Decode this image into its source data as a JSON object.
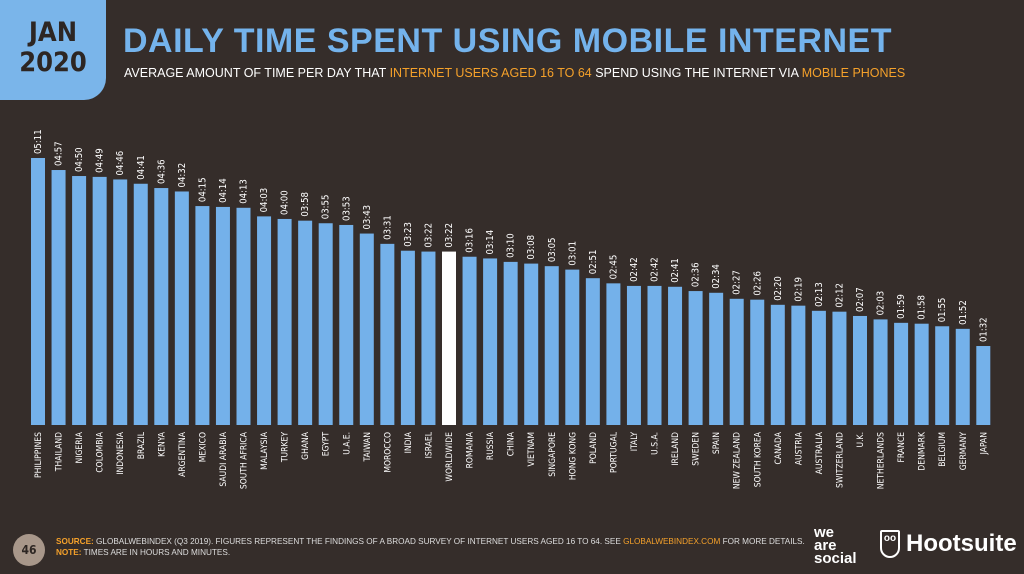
{
  "header": {
    "month": "JAN",
    "year": "2020",
    "title": "DAILY TIME SPENT USING MOBILE INTERNET",
    "subtitle_parts": [
      "AVERAGE AMOUNT OF TIME PER DAY THAT ",
      "INTERNET USERS AGED 16 TO 64",
      " SPEND USING THE INTERNET VIA ",
      "MOBILE PHONES"
    ]
  },
  "colors": {
    "bar": "#74b1ea",
    "highlight": "#ffffff",
    "accent": "#f5a12a",
    "background": "#352d2a"
  },
  "chart_data": {
    "type": "bar",
    "title": "DAILY TIME SPENT USING MOBILE INTERNET",
    "xlabel": "",
    "ylabel": "Hours:Minutes",
    "grid": false,
    "highlight": "WORLDWIDE",
    "categories": [
      "PHILIPPINES",
      "THAILAND",
      "NIGERIA",
      "COLOMBIA",
      "INDONESIA",
      "BRAZIL",
      "KENYA",
      "ARGENTINA",
      "MEXICO",
      "SAUDI ARABIA",
      "SOUTH AFRICA",
      "MALAYSIA",
      "TURKEY",
      "GHANA",
      "EGYPT",
      "U.A.E.",
      "TAIWAN",
      "MOROCCO",
      "INDIA",
      "ISRAEL",
      "WORLDWIDE",
      "ROMANIA",
      "RUSSIA",
      "CHINA",
      "VIETNAM",
      "SINGAPORE",
      "HONG KONG",
      "POLAND",
      "PORTUGAL",
      "ITALY",
      "U.S.A.",
      "IRELAND",
      "SWEDEN",
      "SPAIN",
      "NEW ZEALAND",
      "SOUTH KOREA",
      "CANADA",
      "AUSTRIA",
      "AUSTRALIA",
      "SWITZERLAND",
      "U.K.",
      "NETHERLANDS",
      "FRANCE",
      "DENMARK",
      "BELGIUM",
      "GERMANY",
      "JAPAN"
    ],
    "labels": [
      "05:11",
      "04:57",
      "04:50",
      "04:49",
      "04:46",
      "04:41",
      "04:36",
      "04:32",
      "04:15",
      "04:14",
      "04:13",
      "04:03",
      "04:00",
      "03:58",
      "03:55",
      "03:53",
      "03:43",
      "03:31",
      "03:23",
      "03:22",
      "03:22",
      "03:16",
      "03:14",
      "03:10",
      "03:08",
      "03:05",
      "03:01",
      "02:51",
      "02:45",
      "02:42",
      "02:42",
      "02:41",
      "02:36",
      "02:34",
      "02:27",
      "02:26",
      "02:20",
      "02:19",
      "02:13",
      "02:12",
      "02:07",
      "02:03",
      "01:59",
      "01:58",
      "01:55",
      "01:52",
      "01:32"
    ],
    "values_minutes": [
      311,
      297,
      290,
      289,
      286,
      281,
      276,
      272,
      255,
      254,
      253,
      243,
      240,
      238,
      235,
      233,
      223,
      211,
      203,
      202,
      202,
      196,
      194,
      190,
      188,
      185,
      181,
      171,
      165,
      162,
      162,
      161,
      156,
      154,
      147,
      146,
      140,
      139,
      133,
      132,
      127,
      123,
      119,
      118,
      115,
      112,
      92
    ],
    "ylim": [
      0,
      311
    ]
  },
  "footer": {
    "page": "46",
    "source_label": "SOURCE:",
    "source_text": " GLOBALWEBINDEX (Q3 2019). FIGURES REPRESENT THE FINDINGS OF A BROAD SURVEY OF INTERNET USERS AGED 16 TO 64. SEE ",
    "source_link": "GLOBALWEBINDEX.COM",
    "source_end": " FOR MORE DETAILS.",
    "note_label": "NOTE:",
    "note_text": " TIMES ARE IN HOURS AND MINUTES."
  },
  "logos": {
    "we_are_social": "we are social",
    "hootsuite": "Hootsuite"
  }
}
